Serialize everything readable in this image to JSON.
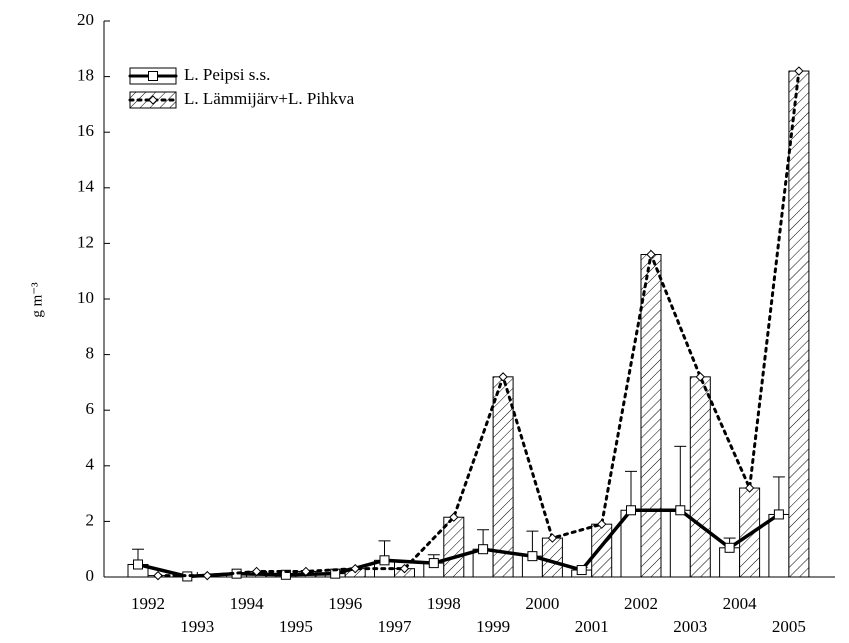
{
  "chart_data": {
    "type": "bar",
    "ylabel": "g m⁻³",
    "categories": [
      "1992",
      "1993",
      "1994",
      "1995",
      "1996",
      "1997",
      "1998",
      "1999",
      "2000",
      "2001",
      "2002",
      "2003",
      "2004",
      "2005"
    ],
    "series": [
      {
        "name": "L. Peipsi s.s.",
        "color": "#ffffff",
        "line_color": "#000000",
        "values": [
          0.45,
          0.02,
          0.12,
          0.08,
          0.12,
          0.6,
          0.5,
          1.0,
          0.75,
          0.25,
          2.4,
          2.4,
          1.05,
          2.25
        ],
        "errors": [
          0.55,
          0,
          0,
          0,
          0,
          0.7,
          0.3,
          0.7,
          0.9,
          0.1,
          1.4,
          2.3,
          0.35,
          1.35
        ]
      },
      {
        "name": "L. Lämmijärv+L. Pihkva",
        "color": "hatch",
        "line_color": "#000000",
        "values": [
          0.05,
          0.05,
          0.2,
          0.2,
          0.3,
          0.3,
          2.15,
          7.2,
          1.4,
          1.9,
          11.6,
          7.2,
          3.2,
          18.2
        ]
      }
    ],
    "ylim": [
      0,
      20
    ],
    "yticks": [
      0,
      2,
      4,
      6,
      8,
      10,
      12,
      14,
      16,
      18,
      20
    ],
    "grid": false,
    "legend": "upper left"
  }
}
